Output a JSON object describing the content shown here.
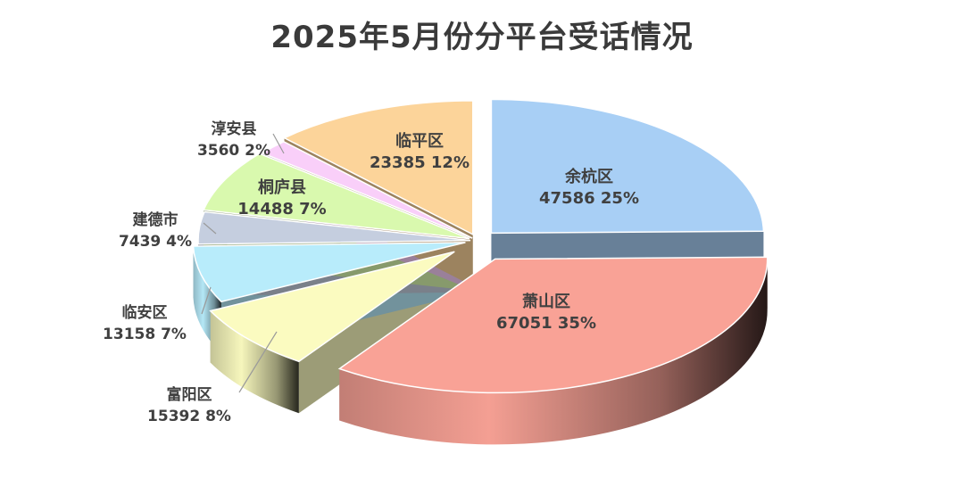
{
  "chart_data": {
    "type": "pie",
    "title": "2025年5月份分平台受话情况",
    "slices": [
      {
        "name": "余杭区",
        "value": 47586,
        "percent": "25%",
        "color": "#a8cff5"
      },
      {
        "name": "萧山区",
        "value": 67051,
        "percent": "35%",
        "color": "#f9a296"
      },
      {
        "name": "富阳区",
        "value": 15392,
        "percent": "8%",
        "color": "#fbfbc0"
      },
      {
        "name": "临安区",
        "value": 13158,
        "percent": "7%",
        "color": "#b8ecfb"
      },
      {
        "name": "建德市",
        "value": 7439,
        "percent": "4%",
        "color": "#c5cedf"
      },
      {
        "name": "桐庐县",
        "value": 14488,
        "percent": "7%",
        "color": "#d9f9ae"
      },
      {
        "name": "淳安县",
        "value": 3560,
        "percent": "2%",
        "color": "#f9cff9"
      },
      {
        "name": "临平区",
        "value": 23385,
        "percent": "12%",
        "color": "#fcd49a"
      }
    ],
    "legend": "none",
    "grid": false
  }
}
